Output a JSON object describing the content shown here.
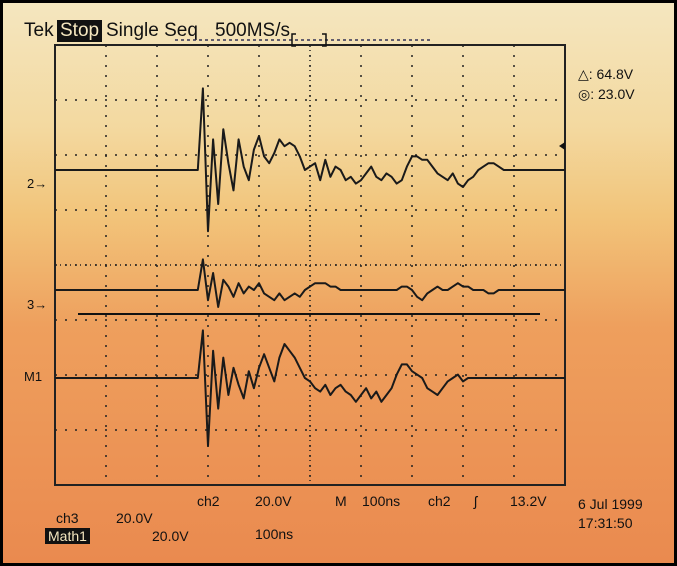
{
  "header": {
    "brand": "Tek",
    "state": "Stop",
    "mode": "Single Seq",
    "rate": "500MS/s"
  },
  "cursor_readout": {
    "delta_label": "△: 64.8V",
    "abs_label": "◎: 23.0V"
  },
  "channel_markers": {
    "ch2": "2→",
    "ch3": "3→",
    "math": "M1"
  },
  "bottom": {
    "ch2_label": "ch2",
    "ch2_scale": "20.0V",
    "timebase_label": "M",
    "timebase_value": "100ns",
    "trigger_source": "ch2",
    "trigger_slope": "ʃ",
    "trigger_level": "13.2V",
    "ch3_label": "ch3",
    "ch3_scale": "20.0V",
    "math_label": "Math1",
    "math_scale": "20.0V",
    "math_time": "100ns",
    "date": "6 Jul  1999",
    "time": "17:31:50"
  },
  "colors": {
    "trace": "#1a1a1a",
    "grid": "#222222",
    "background_top": "#f4e6bf",
    "background_bottom": "#ea8a4f"
  },
  "chart_data": {
    "type": "line",
    "grid": true,
    "x_divisions": 10,
    "y_divisions": 8,
    "time_per_div": "100ns",
    "x": [
      0,
      0.5,
      1,
      1.5,
      2,
      2.5,
      2.8,
      2.9,
      3.0,
      3.1,
      3.2,
      3.3,
      3.4,
      3.5,
      3.6,
      3.7,
      3.8,
      3.9,
      4.0,
      4.1,
      4.2,
      4.3,
      4.4,
      4.5,
      4.6,
      4.7,
      4.8,
      4.9,
      5.0,
      5.1,
      5.2,
      5.3,
      5.4,
      5.5,
      5.6,
      5.7,
      5.8,
      5.9,
      6.0,
      6.1,
      6.2,
      6.3,
      6.4,
      6.5,
      6.6,
      6.7,
      6.8,
      6.9,
      7.0,
      7.1,
      7.2,
      7.3,
      7.4,
      7.5,
      7.6,
      7.7,
      7.8,
      7.9,
      8.0,
      8.1,
      8.2,
      8.3,
      8.4,
      8.5,
      8.6,
      8.7,
      8.8,
      8.9,
      9.0,
      9.1,
      9.2,
      9.4,
      9.6,
      9.8,
      10.0
    ],
    "series": [
      {
        "channel": "2",
        "values": [
          0,
          0,
          0,
          0,
          0,
          0,
          0,
          2.4,
          -1.8,
          0.9,
          -1.0,
          1.2,
          0.2,
          -0.6,
          0.9,
          0.1,
          -0.3,
          0.6,
          1.0,
          0.4,
          0.2,
          0.5,
          0.9,
          0.7,
          0.8,
          0.7,
          0.4,
          0.0,
          0.1,
          0.2,
          -0.3,
          0.3,
          -0.2,
          0.1,
          0.0,
          -0.3,
          -0.2,
          -0.4,
          -0.3,
          -0.1,
          0.1,
          -0.2,
          -0.3,
          -0.1,
          -0.2,
          -0.4,
          -0.3,
          0.1,
          0.4,
          0.4,
          0.3,
          0.3,
          0.1,
          -0.1,
          -0.2,
          -0.3,
          -0.1,
          -0.4,
          -0.5,
          -0.3,
          -0.2,
          0.0,
          0.1,
          0.2,
          0.2,
          0.1,
          0.0,
          0.0,
          0.0,
          0.0,
          0.0,
          0.0,
          0.0,
          0.0,
          0.0
        ]
      },
      {
        "channel": "3",
        "values": [
          0,
          0,
          0,
          0,
          0,
          0,
          0,
          0.9,
          -0.3,
          0.5,
          -0.5,
          0.3,
          0.1,
          -0.2,
          0.2,
          -0.1,
          0.1,
          0.0,
          0.2,
          -0.1,
          -0.2,
          -0.3,
          -0.1,
          -0.3,
          -0.2,
          -0.1,
          -0.2,
          0.0,
          0.1,
          0.2,
          0.2,
          0.2,
          0.1,
          0.1,
          0.0,
          0.0,
          0.0,
          0.0,
          0.0,
          0.0,
          0.0,
          0.0,
          0.0,
          0.0,
          0.0,
          0.0,
          0.1,
          0.1,
          0.0,
          -0.2,
          -0.3,
          -0.1,
          0.0,
          0.1,
          0.0,
          0.0,
          0.1,
          0.2,
          0.1,
          0.1,
          0.0,
          0.0,
          0.0,
          -0.1,
          -0.1,
          0.0,
          0.0,
          0.0,
          0.0,
          0.0,
          0.0,
          0.0,
          0.0,
          0.0,
          0.0
        ]
      },
      {
        "channel": "M1",
        "values": [
          0,
          0,
          0,
          0,
          0,
          0,
          0,
          1.4,
          -2.0,
          0.8,
          -0.9,
          0.6,
          -0.5,
          0.3,
          -0.2,
          -0.6,
          0.2,
          -0.3,
          0.3,
          0.7,
          0.3,
          -0.1,
          0.6,
          1.0,
          0.8,
          0.6,
          0.3,
          0.0,
          -0.1,
          -0.3,
          -0.4,
          -0.2,
          -0.5,
          -0.3,
          -0.2,
          -0.4,
          -0.5,
          -0.7,
          -0.5,
          -0.3,
          -0.6,
          -0.4,
          -0.7,
          -0.5,
          -0.3,
          0.1,
          0.4,
          0.4,
          0.2,
          0.1,
          0.0,
          -0.3,
          -0.4,
          -0.5,
          -0.3,
          -0.1,
          0.0,
          0.1,
          -0.1,
          0.0,
          0.0,
          0.0,
          0.0,
          0.0,
          0.0,
          0.0,
          0.0,
          0.0,
          0.0,
          0.0,
          0.0,
          0.0,
          0.0,
          0.0,
          0.0
        ]
      }
    ]
  }
}
